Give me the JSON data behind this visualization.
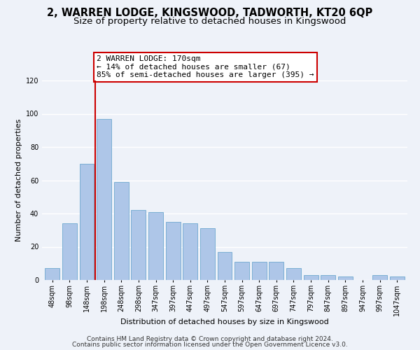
{
  "title": "2, WARREN LODGE, KINGSWOOD, TADWORTH, KT20 6QP",
  "subtitle": "Size of property relative to detached houses in Kingswood",
  "xlabel": "Distribution of detached houses by size in Kingswood",
  "ylabel": "Number of detached properties",
  "bar_labels": [
    "48sqm",
    "98sqm",
    "148sqm",
    "198sqm",
    "248sqm",
    "298sqm",
    "347sqm",
    "397sqm",
    "447sqm",
    "497sqm",
    "547sqm",
    "597sqm",
    "647sqm",
    "697sqm",
    "747sqm",
    "797sqm",
    "847sqm",
    "897sqm",
    "947sqm",
    "997sqm",
    "1047sqm"
  ],
  "bar_values": [
    7,
    34,
    70,
    97,
    59,
    42,
    41,
    35,
    34,
    31,
    17,
    11,
    11,
    11,
    7,
    3,
    3,
    2,
    0,
    3,
    2
  ],
  "bar_color": "#aec6e8",
  "bar_edge_color": "#7bafd4",
  "reference_line_color": "#cc0000",
  "annotation_text": "2 WARREN LODGE: 170sqm\n← 14% of detached houses are smaller (67)\n85% of semi-detached houses are larger (395) →",
  "annotation_box_color": "#ffffff",
  "annotation_box_edge_color": "#cc0000",
  "ylim": [
    0,
    120
  ],
  "yticks": [
    0,
    20,
    40,
    60,
    80,
    100,
    120
  ],
  "footer_line1": "Contains HM Land Registry data © Crown copyright and database right 2024.",
  "footer_line2": "Contains public sector information licensed under the Open Government Licence v3.0.",
  "bg_color": "#eef2f9",
  "grid_color": "#ffffff",
  "title_fontsize": 10.5,
  "subtitle_fontsize": 9.5,
  "label_fontsize": 8,
  "tick_fontsize": 7,
  "annotation_fontsize": 8,
  "footer_fontsize": 6.5
}
